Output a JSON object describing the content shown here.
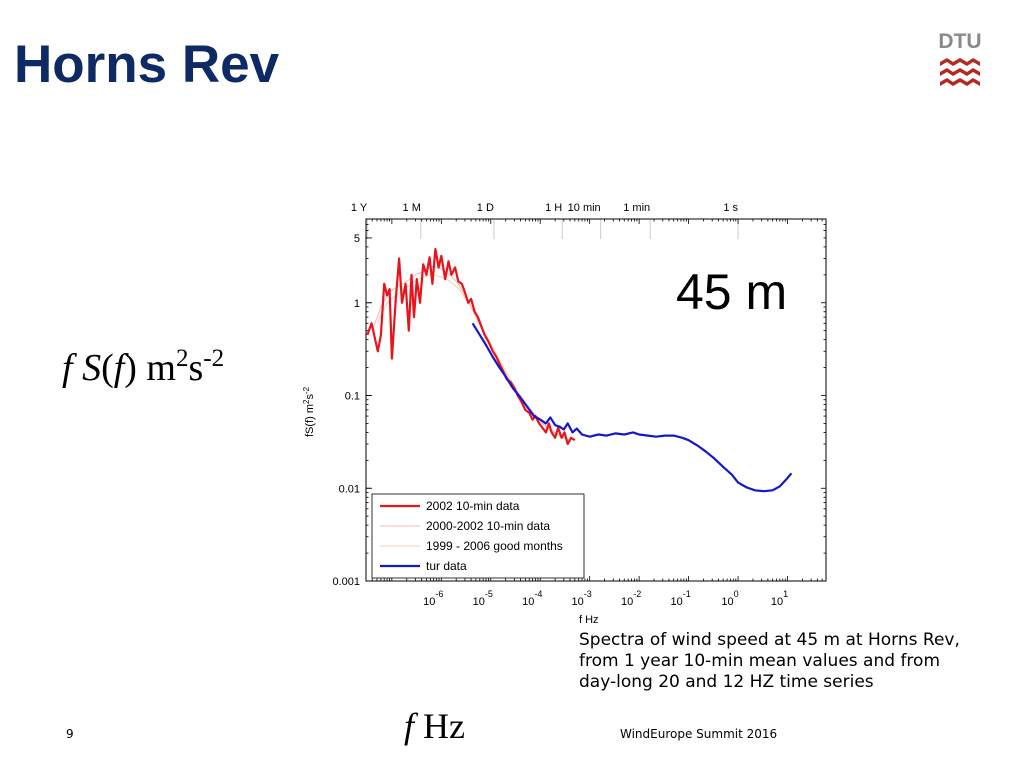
{
  "slide": {
    "title": "Horns Rev",
    "page_number": "9",
    "footer": "WindEurope Summit 2016",
    "logo_text": "DTU",
    "side_label": {
      "italic1": "f",
      "s": "S",
      "paren_open": "(",
      "italic2": "f",
      "paren_close": ") m",
      "sup1": "2",
      "s2": "s",
      "sup2": "-2"
    },
    "x_label_large": {
      "italic": "f",
      "text": " Hz"
    },
    "caption": [
      "Spectra of wind speed at 45 m at Horns Rev,",
      "from 1 year 10-min mean values and from",
      "day-long 20 and 12 HZ time series"
    ],
    "colors": {
      "title": "#0d2a64",
      "logo_red": "#b32a24",
      "logo_gray": "#8a8a8a"
    }
  },
  "chart_data": {
    "type": "line",
    "title": "",
    "annotation": "45 m",
    "xlabel": "f Hz",
    "ylabel": "fS(f) m²s⁻²",
    "ylabel_parts": {
      "base": "fS(f) m",
      "sup1": "2",
      "mid": "s",
      "sup2": "-2"
    },
    "xscale": "log",
    "yscale": "log",
    "xlim": [
      3e-08,
      60
    ],
    "ylim": [
      0.001,
      8
    ],
    "x_ticks": [
      {
        "value": 1e-06,
        "base": "10",
        "exp": "-6"
      },
      {
        "value": 1e-05,
        "base": "10",
        "exp": "-5"
      },
      {
        "value": 0.0001,
        "base": "10",
        "exp": "-4"
      },
      {
        "value": 0.001,
        "base": "10",
        "exp": "-3"
      },
      {
        "value": 0.01,
        "base": "10",
        "exp": "-2"
      },
      {
        "value": 0.1,
        "base": "10",
        "exp": "-1"
      },
      {
        "value": 1,
        "base": "10",
        "exp": "0"
      },
      {
        "value": 10,
        "base": "10",
        "exp": "1"
      }
    ],
    "y_ticks": [
      {
        "value": 0.001,
        "label": "0.001"
      },
      {
        "value": 0.01,
        "label": "0.01"
      },
      {
        "value": 0.1,
        "label": "0.1"
      },
      {
        "value": 1,
        "label": "1"
      },
      {
        "value": 5,
        "label": "5"
      }
    ],
    "top_ticks": [
      {
        "value": 3.17e-08,
        "label": "1  Y"
      },
      {
        "value": 3.86e-07,
        "label": "1  M"
      },
      {
        "value": 1.157e-05,
        "label": "1  D"
      },
      {
        "value": 0.000278,
        "label": "1  H"
      },
      {
        "value": 0.00167,
        "label": "10 min"
      },
      {
        "value": 0.0167,
        "label": "1 min"
      },
      {
        "value": 1,
        "label": "1 s"
      }
    ],
    "legend": {
      "placement": "bottom-left"
    },
    "series": [
      {
        "name": "2002 10-min data",
        "color": "#e8141c",
        "style": "solid-thick",
        "points": [
          [
            3.2e-08,
            0.45
          ],
          [
            3.9e-08,
            0.6
          ],
          [
            4.6e-08,
            0.4
          ],
          [
            5.2e-08,
            0.3
          ],
          [
            6e-08,
            0.45
          ],
          [
            7e-08,
            1.6
          ],
          [
            8e-08,
            1.2
          ],
          [
            9e-08,
            1.4
          ],
          [
            1e-07,
            0.25
          ],
          [
            1.2e-07,
            1.1
          ],
          [
            1.4e-07,
            3.0
          ],
          [
            1.6e-07,
            1.0
          ],
          [
            1.9e-07,
            1.6
          ],
          [
            2.2e-07,
            0.5
          ],
          [
            2.5e-07,
            2.0
          ],
          [
            2.8e-07,
            0.7
          ],
          [
            3.2e-07,
            1.8
          ],
          [
            3.7e-07,
            1.0
          ],
          [
            4.3e-07,
            2.6
          ],
          [
            5e-07,
            2.0
          ],
          [
            5.8e-07,
            3.1
          ],
          [
            6.6e-07,
            1.6
          ],
          [
            7.6e-07,
            3.8
          ],
          [
            8.8e-07,
            2.4
          ],
          [
            1e-06,
            3.2
          ],
          [
            1.2e-06,
            1.8
          ],
          [
            1.4e-06,
            2.8
          ],
          [
            1.6e-06,
            2.0
          ],
          [
            1.9e-06,
            2.4
          ],
          [
            2.2e-06,
            1.7
          ],
          [
            2.6e-06,
            1.6
          ],
          [
            3e-06,
            1.3
          ],
          [
            3.5e-06,
            1.0
          ],
          [
            4e-06,
            1.1
          ],
          [
            4.7e-06,
            0.8
          ],
          [
            5.5e-06,
            0.7
          ],
          [
            6.5e-06,
            0.55
          ],
          [
            7.5e-06,
            0.45
          ],
          [
            9e-06,
            0.38
          ],
          [
            1.1e-05,
            0.3
          ],
          [
            1.3e-05,
            0.26
          ],
          [
            1.5e-05,
            0.22
          ],
          [
            1.8e-05,
            0.18
          ],
          [
            2.1e-05,
            0.15
          ],
          [
            2.5e-05,
            0.14
          ],
          [
            3e-05,
            0.12
          ],
          [
            3.5e-05,
            0.1
          ],
          [
            4.2e-05,
            0.085
          ],
          [
            5e-05,
            0.07
          ],
          [
            6e-05,
            0.065
          ],
          [
            7e-05,
            0.055
          ],
          [
            8e-05,
            0.06
          ],
          [
            9.5e-05,
            0.05
          ],
          [
            0.00011,
            0.045
          ],
          [
            0.00013,
            0.04
          ],
          [
            0.00015,
            0.05
          ],
          [
            0.00017,
            0.04
          ],
          [
            0.0002,
            0.035
          ],
          [
            0.00023,
            0.045
          ],
          [
            0.00027,
            0.035
          ],
          [
            0.00031,
            0.04
          ],
          [
            0.00036,
            0.03
          ],
          [
            0.00042,
            0.035
          ],
          [
            0.0005,
            0.033
          ]
        ]
      },
      {
        "name": "2000-2002 10-min data",
        "color": "#f4b8b8",
        "style": "thin",
        "points": [
          [
            4e-08,
            0.5
          ],
          [
            6e-08,
            0.9
          ],
          [
            9e-08,
            1.3
          ],
          [
            1.3e-07,
            1.5
          ],
          [
            2e-07,
            1.7
          ],
          [
            3e-07,
            2.0
          ],
          [
            4.5e-07,
            2.2
          ],
          [
            7e-07,
            2.5
          ],
          [
            1e-06,
            2.3
          ],
          [
            1.5e-06,
            2.0
          ],
          [
            2.2e-06,
            1.6
          ],
          [
            3.3e-06,
            1.1
          ],
          [
            5e-06,
            0.7
          ],
          [
            7.5e-06,
            0.45
          ],
          [
            1.1e-05,
            0.3
          ],
          [
            1.7e-05,
            0.2
          ],
          [
            2.5e-05,
            0.14
          ],
          [
            3.8e-05,
            0.1
          ],
          [
            5.5e-05,
            0.075
          ],
          [
            8e-05,
            0.06
          ],
          [
            0.00012,
            0.048
          ],
          [
            0.00018,
            0.04
          ],
          [
            0.00027,
            0.036
          ],
          [
            0.0004,
            0.033
          ]
        ]
      },
      {
        "name": "1999 - 2006 good months",
        "color": "#f0d0a8",
        "style": "thin",
        "points": [
          [
            5e-08,
            0.6
          ],
          [
            8e-08,
            1.0
          ],
          [
            1.2e-07,
            1.2
          ],
          [
            1.8e-07,
            1.4
          ],
          [
            2.8e-07,
            1.7
          ],
          [
            4.2e-07,
            1.9
          ],
          [
            6.5e-07,
            2.0
          ],
          [
            1e-06,
            1.9
          ],
          [
            1.5e-06,
            1.7
          ],
          [
            2.3e-06,
            1.4
          ],
          [
            3.5e-06,
            1.0
          ],
          [
            5.2e-06,
            0.7
          ],
          [
            8e-06,
            0.45
          ],
          [
            1.2e-05,
            0.3
          ],
          [
            1.8e-05,
            0.2
          ],
          [
            2.7e-05,
            0.14
          ],
          [
            4e-05,
            0.1
          ],
          [
            6e-05,
            0.075
          ],
          [
            9e-05,
            0.058
          ],
          [
            0.00014,
            0.046
          ],
          [
            0.0002,
            0.04
          ],
          [
            0.0003,
            0.036
          ]
        ]
      },
      {
        "name": "tur data",
        "color": "#1418c8",
        "style": "solid-thick",
        "points": [
          [
            4.3e-06,
            0.6
          ],
          [
            6e-06,
            0.45
          ],
          [
            8e-06,
            0.35
          ],
          [
            1.1e-05,
            0.26
          ],
          [
            1.5e-05,
            0.2
          ],
          [
            2e-05,
            0.16
          ],
          [
            2.8e-05,
            0.12
          ],
          [
            4e-05,
            0.095
          ],
          [
            5.5e-05,
            0.075
          ],
          [
            7.5e-05,
            0.06
          ],
          [
            0.0001,
            0.055
          ],
          [
            0.00013,
            0.05
          ],
          [
            0.00016,
            0.058
          ],
          [
            0.0002,
            0.048
          ],
          [
            0.00025,
            0.046
          ],
          [
            0.0003,
            0.043
          ],
          [
            0.00036,
            0.05
          ],
          [
            0.00045,
            0.04
          ],
          [
            0.00055,
            0.044
          ],
          [
            0.0007,
            0.038
          ],
          [
            0.001,
            0.036
          ],
          [
            0.0015,
            0.038
          ],
          [
            0.0022,
            0.037
          ],
          [
            0.0033,
            0.039
          ],
          [
            0.005,
            0.038
          ],
          [
            0.0075,
            0.04
          ],
          [
            0.01,
            0.038
          ],
          [
            0.015,
            0.037
          ],
          [
            0.022,
            0.036
          ],
          [
            0.033,
            0.037
          ],
          [
            0.05,
            0.037
          ],
          [
            0.075,
            0.035
          ],
          [
            0.1,
            0.033
          ],
          [
            0.15,
            0.029
          ],
          [
            0.22,
            0.025
          ],
          [
            0.33,
            0.021
          ],
          [
            0.5,
            0.017
          ],
          [
            0.75,
            0.014
          ],
          [
            1.0,
            0.0115
          ],
          [
            1.5,
            0.0102
          ],
          [
            2.2,
            0.0095
          ],
          [
            3.3,
            0.0093
          ],
          [
            5.0,
            0.0095
          ],
          [
            7.0,
            0.0105
          ],
          [
            9.5,
            0.0125
          ],
          [
            12.0,
            0.0145
          ]
        ]
      }
    ]
  }
}
